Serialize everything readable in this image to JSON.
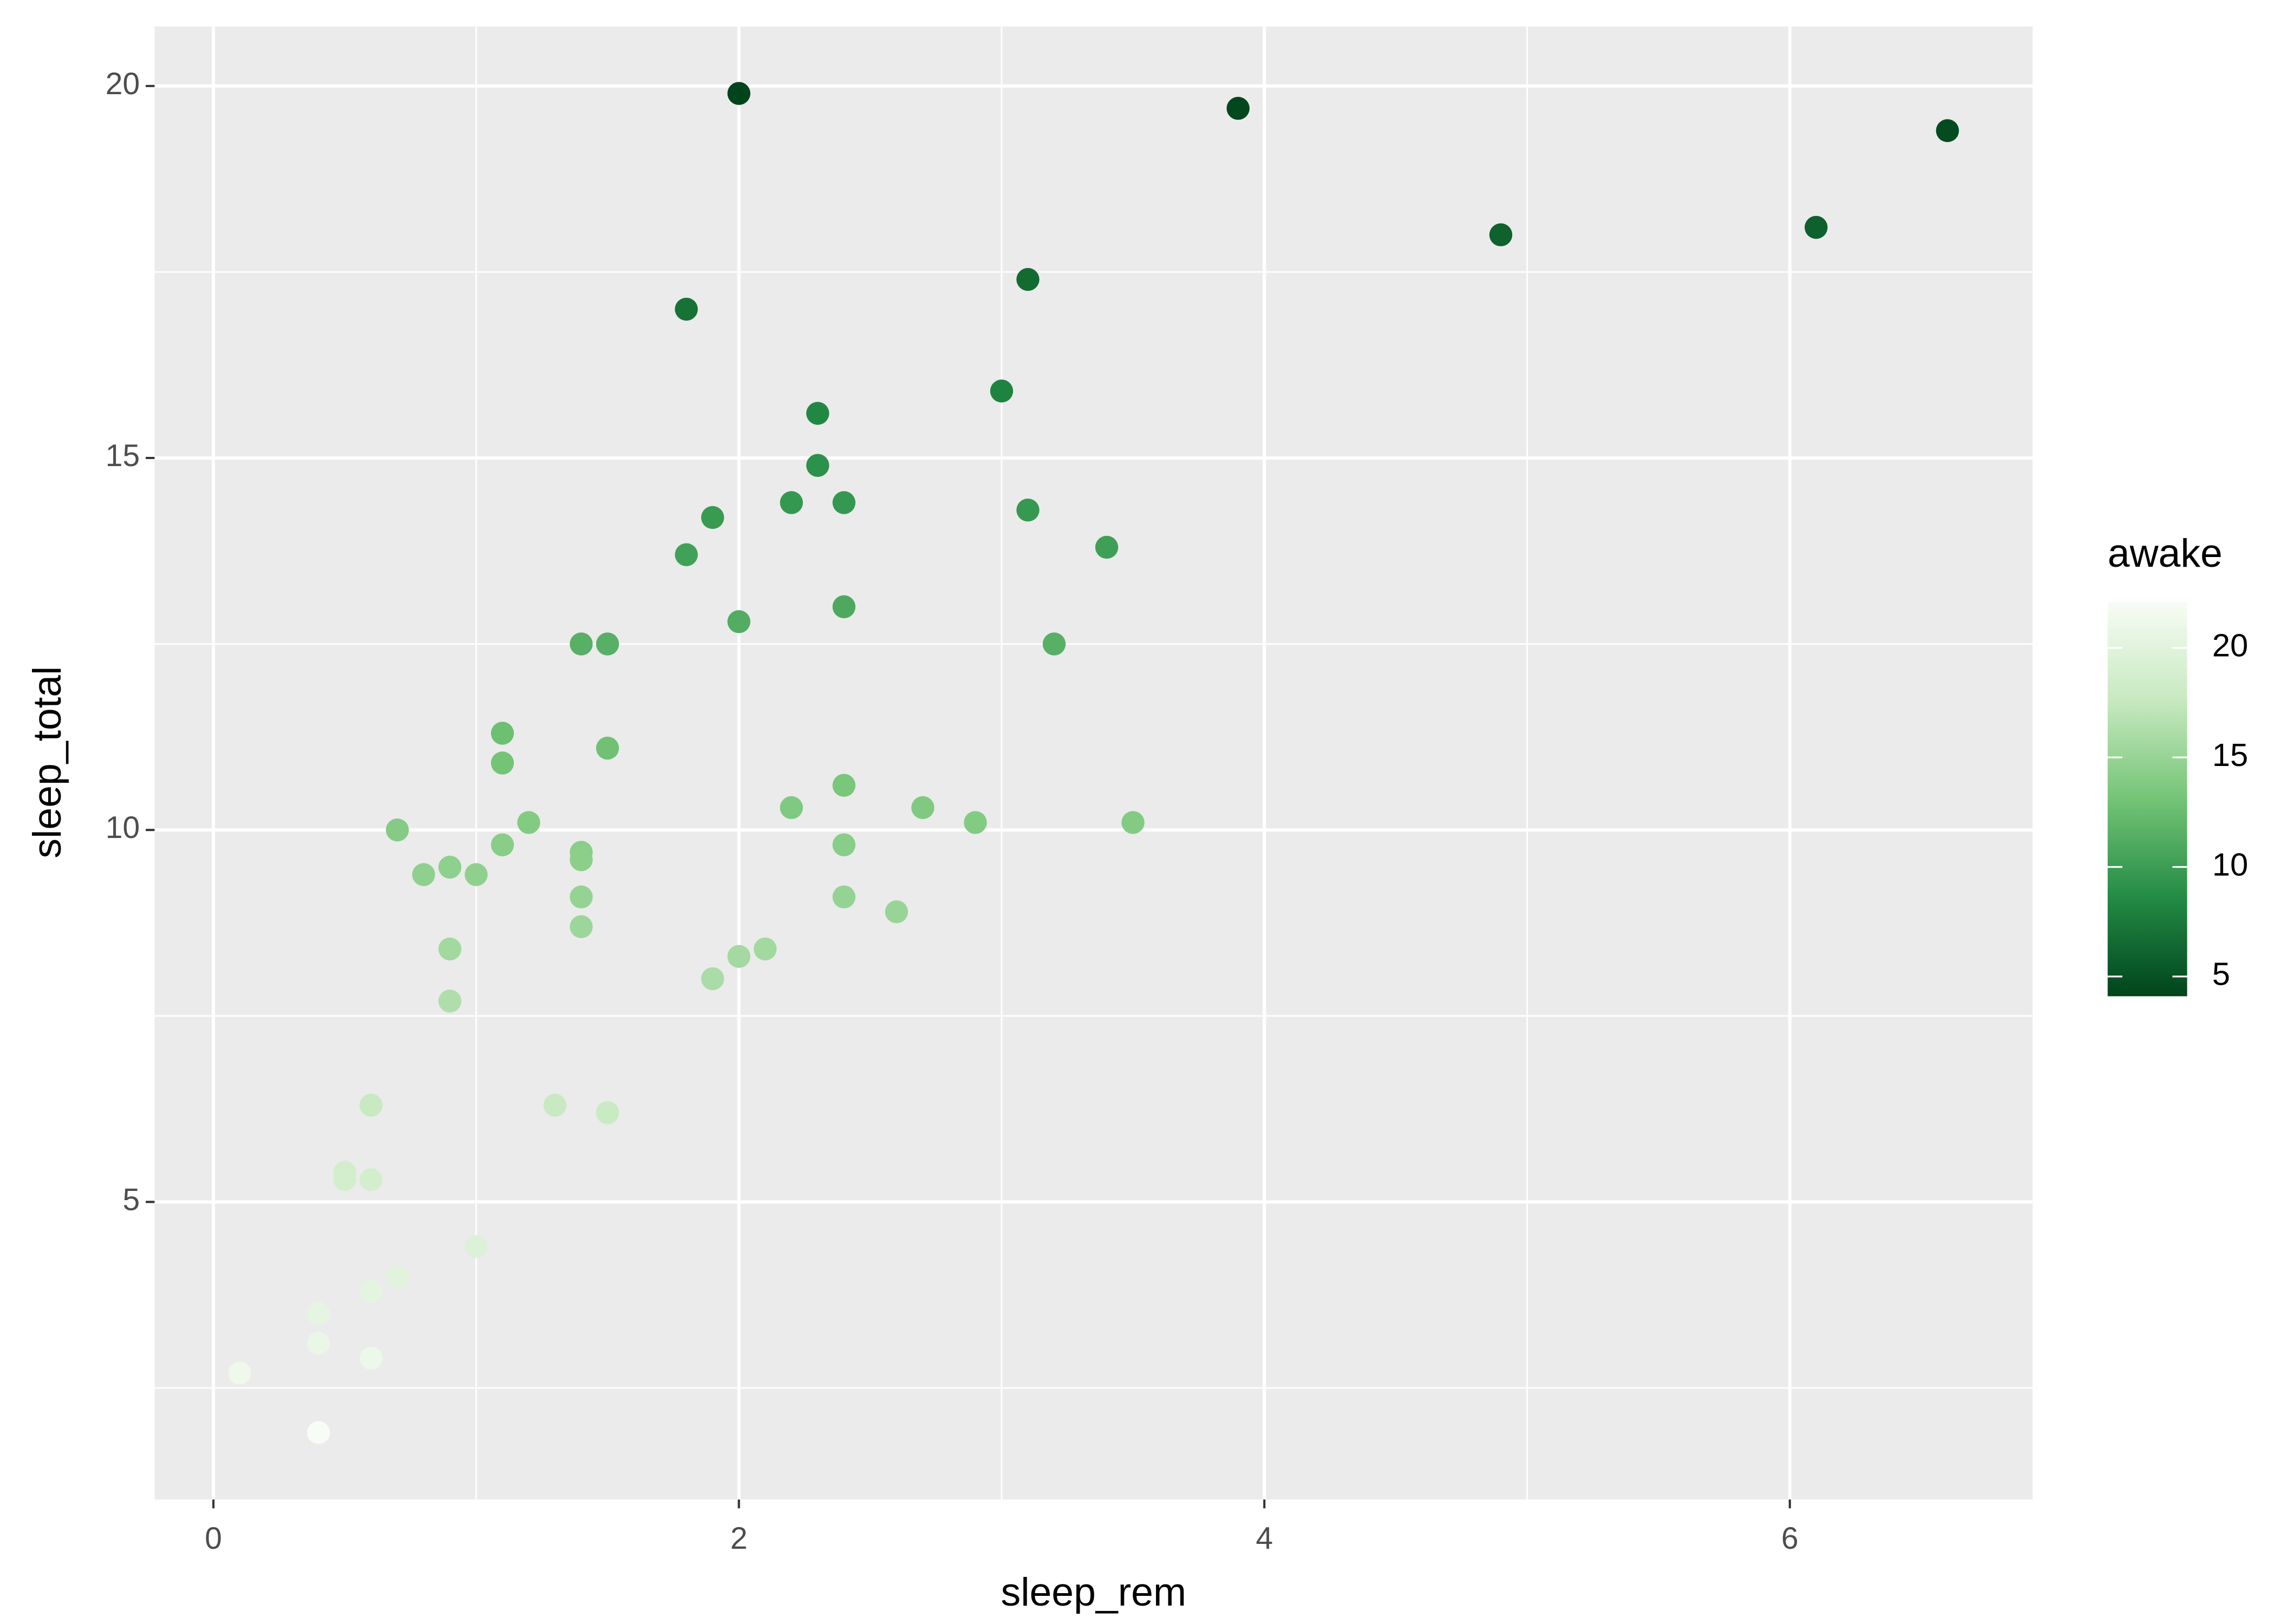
{
  "chart_data": {
    "type": "scatter",
    "x_label": "sleep_rem",
    "y_label": "sleep_total",
    "color_label": "awake",
    "x": [
      2.0,
      3.9,
      6.6,
      4.9,
      6.1,
      3.1,
      1.8,
      3.0,
      2.3,
      2.3,
      1.9,
      2.2,
      2.4,
      3.1,
      3.4,
      1.8,
      2.4,
      2.0,
      1.4,
      1.5,
      3.2,
      1.1,
      1.5,
      1.1,
      2.4,
      2.2,
      2.7,
      1.2,
      2.9,
      3.5,
      0.7,
      1.1,
      2.4,
      1.4,
      1.4,
      0.9,
      0.8,
      1.0,
      1.4,
      2.4,
      2.6,
      1.4,
      0.9,
      2.1,
      2.0,
      1.9,
      0.9,
      0.6,
      1.3,
      1.5,
      0.5,
      0.5,
      0.6,
      1.0,
      0.7,
      0.6,
      0.4,
      0.4,
      0.6,
      0.1,
      0.4
    ],
    "y": [
      19.9,
      19.7,
      19.4,
      18.0,
      18.1,
      17.4,
      17.0,
      15.9,
      15.6,
      14.9,
      14.2,
      14.4,
      14.4,
      14.3,
      13.8,
      13.7,
      13.0,
      12.8,
      12.5,
      12.5,
      12.5,
      11.3,
      11.1,
      10.9,
      10.6,
      10.3,
      10.3,
      10.1,
      10.1,
      10.1,
      10.0,
      9.8,
      9.8,
      9.7,
      9.6,
      9.5,
      9.4,
      9.4,
      9.1,
      9.1,
      8.9,
      8.7,
      8.4,
      8.4,
      8.3,
      8.0,
      7.7,
      6.3,
      6.3,
      6.2,
      5.4,
      5.3,
      5.3,
      4.4,
      4.0,
      3.8,
      3.5,
      3.1,
      2.9,
      2.7,
      1.9
    ],
    "awake": [
      4.1,
      4.3,
      4.6,
      6.0,
      5.9,
      6.6,
      7.0,
      8.1,
      8.4,
      9.1,
      9.8,
      9.6,
      9.6,
      9.7,
      10.2,
      10.3,
      11.0,
      11.2,
      11.5,
      11.5,
      11.5,
      12.7,
      12.9,
      13.1,
      13.4,
      13.7,
      13.7,
      13.9,
      13.9,
      13.9,
      14.0,
      14.2,
      14.2,
      14.3,
      14.4,
      14.5,
      14.6,
      14.6,
      14.9,
      14.9,
      15.1,
      15.3,
      15.6,
      15.6,
      15.7,
      16.0,
      16.3,
      17.7,
      17.7,
      17.8,
      18.6,
      18.7,
      18.7,
      19.6,
      20.0,
      20.2,
      20.5,
      20.9,
      21.1,
      21.3,
      22.1
    ],
    "xlim": [
      -0.224,
      6.924
    ],
    "ylim": [
      1.0,
      20.8
    ],
    "xticks": [
      0,
      2,
      4,
      6
    ],
    "yticks": [
      5,
      10,
      15,
      20
    ],
    "xminor": [
      1,
      3,
      5
    ],
    "yminor": [
      2.5,
      7.5,
      12.5,
      17.5
    ],
    "colorlim": [
      4.1,
      22.1
    ],
    "colorticks": [
      5,
      10,
      15,
      20
    ],
    "color_scale": [
      "#00441b",
      "#238b45",
      "#74c476",
      "#c7e9c0",
      "#f7fcf5"
    ],
    "grid": true
  }
}
